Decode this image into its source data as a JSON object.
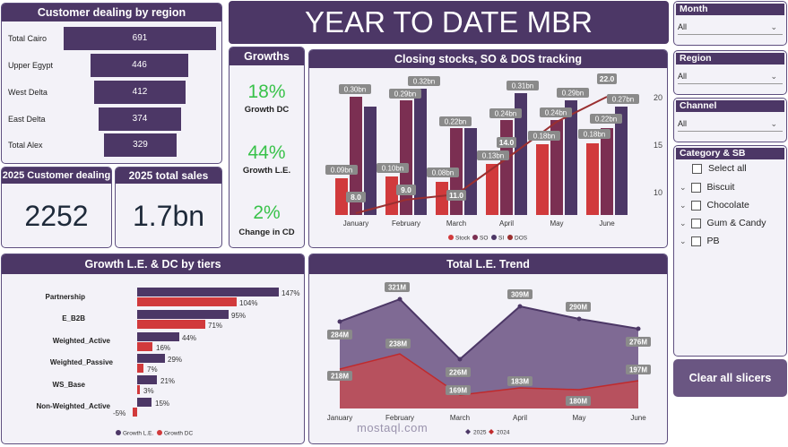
{
  "title": "YEAR TO DATE MBR",
  "region_panel": {
    "title": "Customer dealing by region",
    "rows": [
      {
        "label": "Total Cairo",
        "value": "691"
      },
      {
        "label": "Upper Egypt",
        "value": "446"
      },
      {
        "label": "West Delta",
        "value": "412"
      },
      {
        "label": "East Delta",
        "value": "374"
      },
      {
        "label": "Total Alex",
        "value": "329"
      }
    ]
  },
  "customer_card": {
    "title": "2025 Customer dealing",
    "value": "2252"
  },
  "sales_card": {
    "title": "2025 total sales",
    "value": "1.7bn"
  },
  "growths": {
    "title": "Growths",
    "items": [
      {
        "pct": "18%",
        "label": "Growth DC"
      },
      {
        "pct": "44%",
        "label": "Growth L.E."
      },
      {
        "pct": "2%",
        "label": "Change in CD"
      }
    ]
  },
  "closing_chart": {
    "title": "Closing stocks, SO & DOS tracking",
    "categories": [
      "January",
      "February",
      "March",
      "April",
      "May",
      "June"
    ],
    "y2_ticks": [
      "20",
      "15",
      "10"
    ],
    "legend": [
      "Stock",
      "SO",
      "SI",
      "DOS"
    ],
    "labels_top": [
      "0.30bn",
      "0.29bn",
      "0.32bn",
      "0.22bn",
      "0.31bn",
      "0.24bn",
      "0.29bn",
      "0.24bn",
      "0.27bn",
      "0.22bn"
    ],
    "labels_mid": [
      "0.09bn",
      "0.10bn",
      "0.08bn",
      "0.13bn",
      "0.18bn",
      "0.18bn"
    ],
    "dos_labels": [
      "8.0",
      "9.0",
      "11.0",
      "14.0",
      "22.0"
    ]
  },
  "tiers_chart": {
    "title": "Growth L.E. & DC by tiers",
    "legend": [
      "Growth L.E.",
      "Growth DC"
    ],
    "rows": [
      {
        "name": "Partnership",
        "le": "147%",
        "dc": "104%"
      },
      {
        "name": "E_B2B",
        "le": "95%",
        "dc": "71%"
      },
      {
        "name": "Weighted_Active",
        "le": "44%",
        "dc": "16%"
      },
      {
        "name": "Weighted_Passive",
        "le": "29%",
        "dc": "7%"
      },
      {
        "name": "WS_Base",
        "le": "21%",
        "dc": "3%"
      },
      {
        "name": "Non-Weighted_Active",
        "le": "15%",
        "dc": "-5%"
      }
    ]
  },
  "trend_chart": {
    "title": "Total L.E. Trend",
    "categories": [
      "January",
      "February",
      "March",
      "April",
      "May",
      "June"
    ],
    "legend": [
      "2025",
      "2024"
    ],
    "labels_2025": [
      "284M",
      "321M",
      "226M",
      "309M",
      "290M",
      "276M"
    ],
    "labels_2024": [
      "218M",
      "238M",
      "169M",
      "183M",
      "180M",
      "197M"
    ]
  },
  "chart_data": [
    {
      "type": "bar",
      "title": "Closing stocks, SO & DOS tracking",
      "categories": [
        "January",
        "February",
        "March",
        "April",
        "May",
        "June"
      ],
      "series": [
        {
          "name": "Stock",
          "values": [
            0.09,
            0.1,
            0.08,
            0.13,
            0.18,
            0.18
          ],
          "unit": "bn"
        },
        {
          "name": "SO",
          "values": [
            0.3,
            0.29,
            0.22,
            0.24,
            0.24,
            0.22
          ],
          "unit": "bn"
        },
        {
          "name": "SI",
          "values": [
            0.27,
            0.32,
            0.22,
            0.31,
            0.29,
            0.27
          ],
          "unit": "bn"
        },
        {
          "name": "DOS",
          "type": "line",
          "values": [
            8.0,
            9.0,
            11.0,
            14.0,
            19.5,
            22.0
          ]
        }
      ],
      "y2_range": [
        8,
        22
      ]
    },
    {
      "type": "bar",
      "title": "Growth L.E. & DC by tiers",
      "categories": [
        "Partnership",
        "E_B2B",
        "Weighted_Active",
        "Weighted_Passive",
        "WS_Base",
        "Non-Weighted_Active"
      ],
      "series": [
        {
          "name": "Growth L.E.",
          "values": [
            147,
            95,
            44,
            29,
            21,
            15
          ],
          "unit": "%"
        },
        {
          "name": "Growth DC",
          "values": [
            104,
            71,
            16,
            7,
            3,
            -5
          ],
          "unit": "%"
        }
      ]
    },
    {
      "type": "area",
      "title": "Total L.E. Trend",
      "categories": [
        "January",
        "February",
        "March",
        "April",
        "May",
        "June"
      ],
      "series": [
        {
          "name": "2025",
          "values": [
            284,
            321,
            226,
            309,
            290,
            276
          ],
          "unit": "M"
        },
        {
          "name": "2024",
          "values": [
            218,
            238,
            169,
            183,
            180,
            197
          ],
          "unit": "M"
        }
      ]
    }
  ],
  "slicers": {
    "month": {
      "title": "Month",
      "value": "All"
    },
    "region": {
      "title": "Region",
      "value": "All"
    },
    "channel": {
      "title": "Channel",
      "value": "All"
    },
    "category": {
      "title": "Category & SB",
      "items": [
        "Select all",
        "Biscuit",
        "Chocolate",
        "Gum & Candy",
        "PB"
      ]
    },
    "clear_label": "Clear all slicers"
  },
  "watermark": "mostaql.com",
  "colors": {
    "purple": "#4c3766",
    "red": "#d13a3c",
    "maroon": "#7b2f52",
    "green": "#39c24a"
  }
}
